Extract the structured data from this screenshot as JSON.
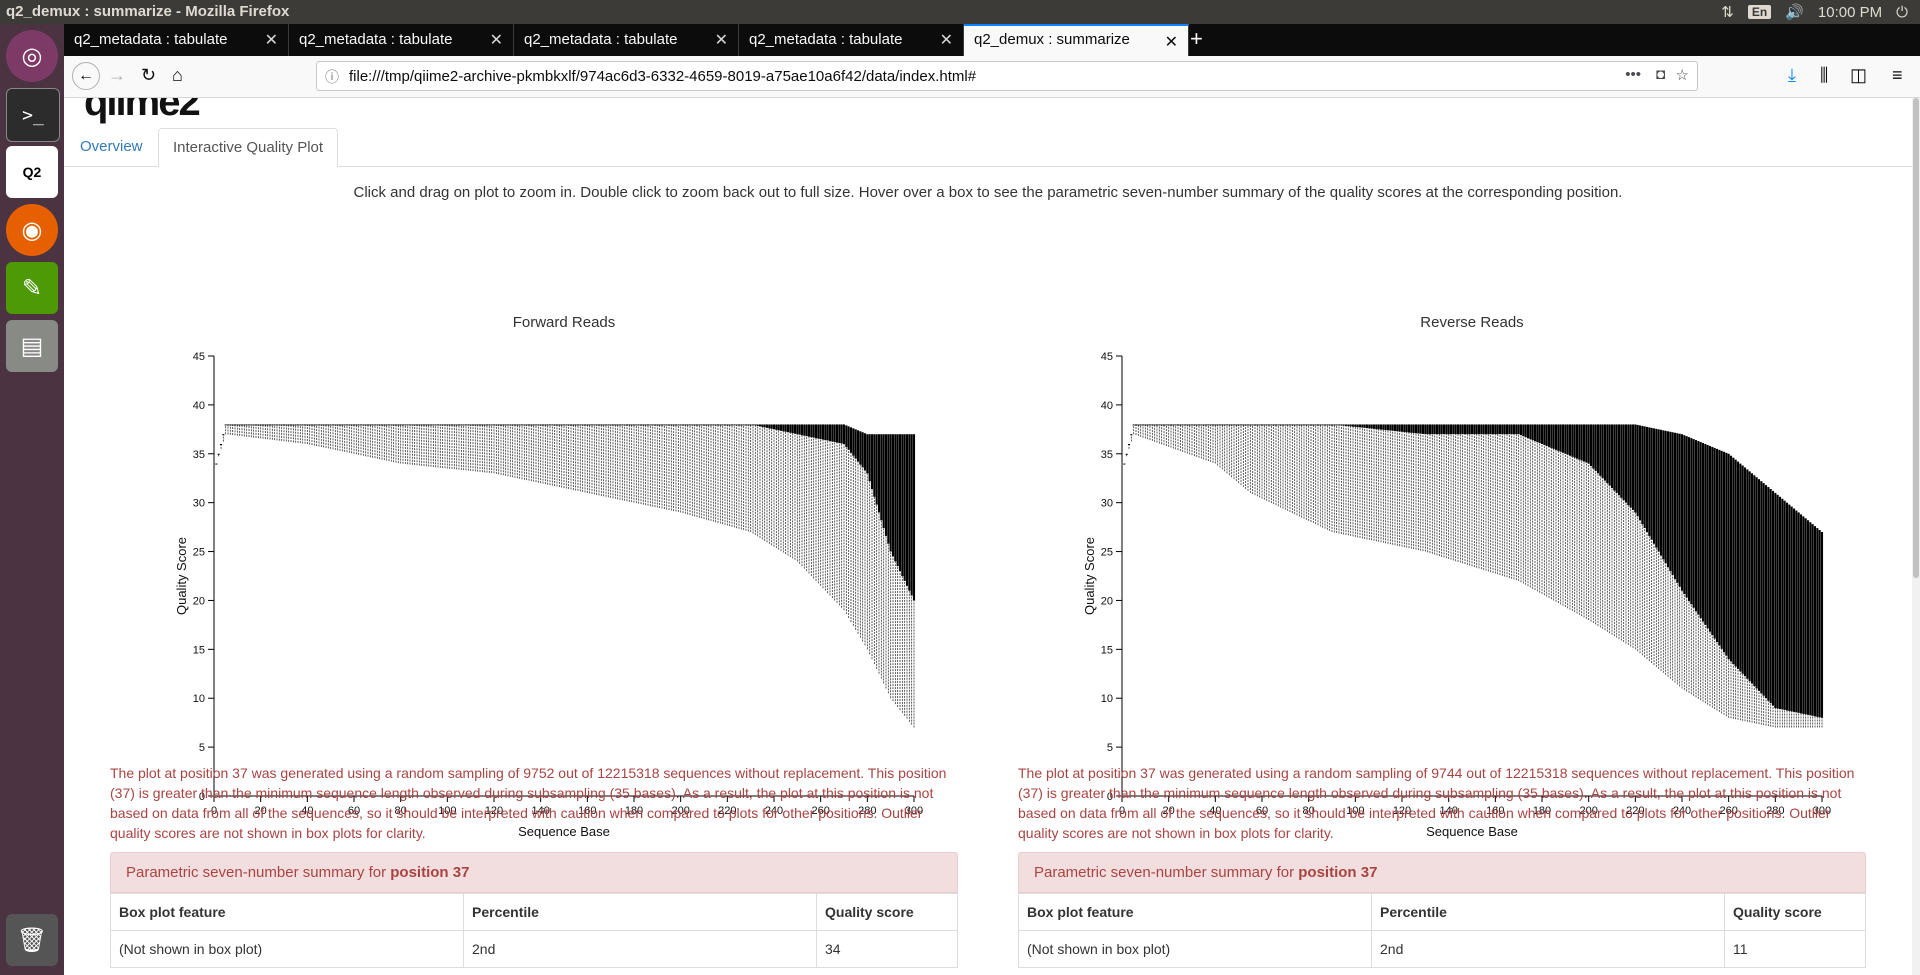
{
  "os": {
    "window_title": "q2_demux : summarize - Mozilla Firefox",
    "lang": "En",
    "time": "10:00 PM"
  },
  "browser": {
    "tabs": [
      {
        "label": "q2_metadata : tabulate"
      },
      {
        "label": "q2_metadata : tabulate"
      },
      {
        "label": "q2_metadata : tabulate"
      },
      {
        "label": "q2_metadata : tabulate"
      },
      {
        "label": "q2_demux : summarize"
      }
    ],
    "new_tab": "+",
    "url": "file:///tmp/qiime2-archive-pkmbkxlf/974ac6d3-6332-4659-8019-a75ae10a6f42/data/index.html#"
  },
  "page": {
    "logo": "qiime2",
    "nav_tabs": [
      {
        "label": "Overview"
      },
      {
        "label": "Interactive Quality Plot"
      }
    ],
    "instructions": "Click and drag on plot to zoom in. Double click to zoom back out to full size. Hover over a box to see the parametric seven-number summary of the quality scores at the corresponding position."
  },
  "colors": {
    "box_fill": "#000000",
    "warning_text": "#a94442",
    "link": "#337ab7"
  },
  "chart_data": [
    {
      "type": "boxplot",
      "title": "Forward Reads",
      "xlabel": "Sequence Base",
      "ylabel": "Quality Score",
      "xlim": [
        0,
        300
      ],
      "ylim": [
        0,
        45
      ],
      "x_ticks": [
        0,
        20,
        40,
        60,
        80,
        100,
        120,
        140,
        160,
        180,
        200,
        220,
        240,
        260,
        280,
        300
      ],
      "y_ticks": [
        0,
        5,
        10,
        15,
        20,
        25,
        30,
        35,
        40,
        45
      ],
      "series": [
        {
          "name": "q25",
          "x": [
            1,
            5,
            40,
            80,
            120,
            160,
            200,
            230,
            250,
            270,
            280,
            290,
            300
          ],
          "values": [
            34,
            38,
            38,
            38,
            38,
            38,
            38,
            38,
            37,
            36,
            33,
            25,
            20
          ]
        },
        {
          "name": "q75",
          "x": [
            1,
            5,
            40,
            80,
            120,
            160,
            200,
            230,
            250,
            270,
            280,
            290,
            300
          ],
          "values": [
            34,
            38,
            38,
            38,
            38,
            38,
            38,
            38,
            38,
            38,
            37,
            37,
            37
          ]
        },
        {
          "name": "whisker_low",
          "x": [
            1,
            5,
            40,
            80,
            120,
            160,
            200,
            230,
            250,
            270,
            280,
            290,
            300
          ],
          "values": [
            34,
            37,
            36,
            34,
            33,
            31,
            29,
            27,
            24,
            19,
            15,
            10,
            7
          ]
        }
      ]
    },
    {
      "type": "boxplot",
      "title": "Reverse Reads",
      "xlabel": "Sequence Base",
      "ylabel": "Quality Score",
      "xlim": [
        0,
        300
      ],
      "ylim": [
        0,
        45
      ],
      "x_ticks": [
        0,
        20,
        40,
        60,
        80,
        100,
        120,
        140,
        160,
        180,
        200,
        220,
        240,
        260,
        280,
        300
      ],
      "y_ticks": [
        0,
        5,
        10,
        15,
        20,
        25,
        30,
        35,
        40,
        45
      ],
      "series": [
        {
          "name": "q25",
          "x": [
            1,
            5,
            40,
            55,
            90,
            130,
            170,
            200,
            220,
            240,
            260,
            280,
            300
          ],
          "values": [
            34,
            38,
            38,
            38,
            38,
            37,
            37,
            34,
            29,
            21,
            14,
            9,
            8
          ]
        },
        {
          "name": "q75",
          "x": [
            1,
            5,
            40,
            55,
            90,
            130,
            170,
            200,
            220,
            240,
            260,
            280,
            300
          ],
          "values": [
            34,
            38,
            38,
            38,
            38,
            38,
            38,
            38,
            38,
            37,
            35,
            31,
            27
          ]
        },
        {
          "name": "whisker_low",
          "x": [
            1,
            5,
            40,
            55,
            90,
            130,
            170,
            200,
            220,
            240,
            260,
            280,
            300
          ],
          "values": [
            34,
            37,
            34,
            31,
            27,
            25,
            22,
            18,
            15,
            11,
            8,
            7,
            7
          ]
        }
      ]
    }
  ],
  "forward": {
    "warning": "The plot at position 37 was generated using a random sampling of 9752 out of 12215318 sequences without replacement. This position (37) is greater than the minimum sequence length observed during subsampling (35 bases). As a result, the plot at this position is not based on data from all of the sequences, so it should be interpreted with caution when compared to plots for other positions. Outlier quality scores are not shown in box plots for clarity.",
    "summary_prefix": "Parametric seven-number summary for ",
    "summary_position": "position 37",
    "headers": [
      "Box plot feature",
      "Percentile",
      "Quality score"
    ],
    "rows": [
      [
        "(Not shown in box plot)",
        "2nd",
        "34"
      ]
    ]
  },
  "reverse": {
    "warning": "The plot at position 37 was generated using a random sampling of 9744 out of 12215318 sequences without replacement. This position (37) is greater than the minimum sequence length observed during subsampling (35 bases). As a result, the plot at this position is not based on data from all of the sequences, so it should be interpreted with caution when compared to plots for other positions. Outlier quality scores are not shown in box plots for clarity.",
    "summary_prefix": "Parametric seven-number summary for ",
    "summary_position": "position 37",
    "headers": [
      "Box plot feature",
      "Percentile",
      "Quality score"
    ],
    "rows": [
      [
        "(Not shown in box plot)",
        "2nd",
        "11"
      ]
    ]
  }
}
